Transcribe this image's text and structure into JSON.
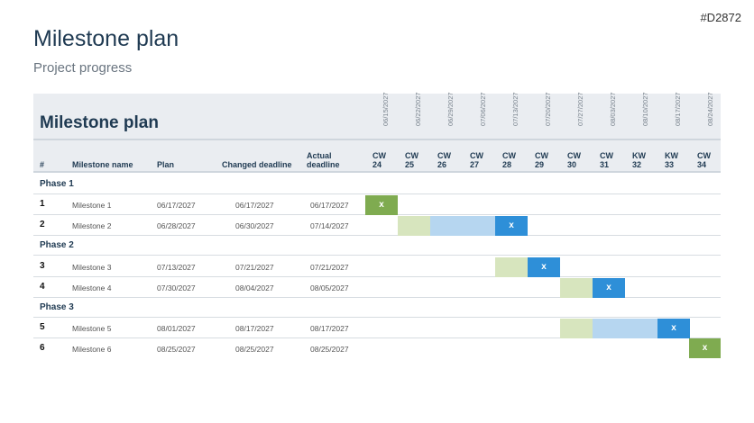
{
  "doc_id": "#D2872",
  "page": {
    "title": "Milestone plan",
    "subtitle": "Project progress"
  },
  "table_title": "Milestone plan",
  "columns": {
    "num": "#",
    "name": "Milestone name",
    "plan": "Plan",
    "changed": "Changed deadline",
    "actual": "Actual deadline"
  },
  "weeks": [
    {
      "date": "06/15/2027",
      "cw": "CW",
      "n": "24"
    },
    {
      "date": "06/22/2027",
      "cw": "CW",
      "n": "25"
    },
    {
      "date": "06/29/2027",
      "cw": "CW",
      "n": "26"
    },
    {
      "date": "07/06/2027",
      "cw": "CW",
      "n": "27"
    },
    {
      "date": "07/13/2027",
      "cw": "CW",
      "n": "28"
    },
    {
      "date": "07/20/2027",
      "cw": "CW",
      "n": "29"
    },
    {
      "date": "07/27/2027",
      "cw": "CW",
      "n": "30"
    },
    {
      "date": "08/03/2027",
      "cw": "CW",
      "n": "31"
    },
    {
      "date": "08/10/2027",
      "cw": "KW",
      "n": "32"
    },
    {
      "date": "08/17/2027",
      "cw": "KW",
      "n": "33"
    },
    {
      "date": "08/24/2027",
      "cw": "CW",
      "n": "34"
    }
  ],
  "phases": [
    "Phase 1",
    "Phase 2",
    "Phase 3"
  ],
  "rows": [
    {
      "num": "1",
      "name": "Milestone 1",
      "plan": "06/17/2027",
      "changed": "06/17/2027",
      "actual": "06/17/2027",
      "marker": "x"
    },
    {
      "num": "2",
      "name": "Milestone 2",
      "plan": "06/28/2027",
      "changed": "06/30/2027",
      "actual": "07/14/2027",
      "marker": "x"
    },
    {
      "num": "3",
      "name": "Milestone 3",
      "plan": "07/13/2027",
      "changed": "07/21/2027",
      "actual": "07/21/2027",
      "marker": "x"
    },
    {
      "num": "4",
      "name": "Milestone 4",
      "plan": "07/30/2027",
      "changed": "08/04/2027",
      "actual": "08/05/2027",
      "marker": "x"
    },
    {
      "num": "5",
      "name": "Milestone 5",
      "plan": "08/01/2027",
      "changed": "08/17/2027",
      "actual": "08/17/2027",
      "marker": "x"
    },
    {
      "num": "6",
      "name": "Milestone 6",
      "plan": "08/25/2027",
      "changed": "08/25/2027",
      "actual": "08/25/2027",
      "marker": "x"
    }
  ],
  "colors": {
    "original_plan": "#d7e5be",
    "delay": "#b6d6f0",
    "on_time": "#7fab50",
    "moved": "#2e8fd8"
  }
}
